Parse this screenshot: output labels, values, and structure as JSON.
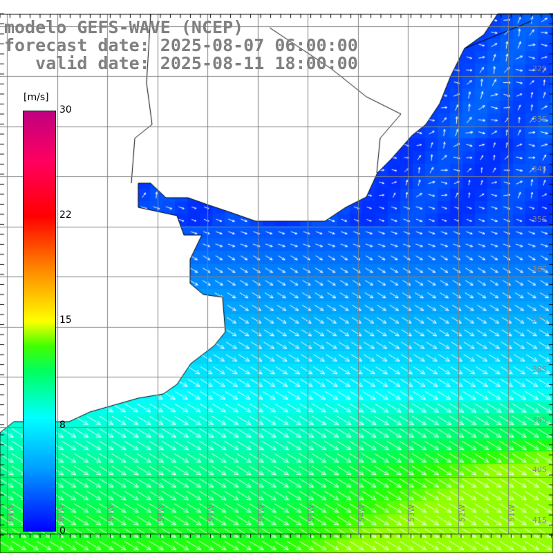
{
  "title": {
    "line1": "modelo GEFS-WAVE (NCEP)",
    "line2": "forecast date: 2025-08-07 06:00:00",
    "line3": "   valid date: 2025-08-11 18:00:00"
  },
  "colorbar": {
    "unit": "[m/s]",
    "labels": [
      "30",
      "22",
      "15",
      "8",
      "0"
    ],
    "min": 0,
    "max": 30
  },
  "lat_labels": [
    "32S",
    "33S",
    "34S",
    "35S",
    "36S",
    "37S",
    "38S",
    "39S",
    "40S",
    "41S"
  ],
  "lon_labels": [
    "61W",
    "60W",
    "59W",
    "58W",
    "57W",
    "56W",
    "55W",
    "54W",
    "53W",
    "52W",
    "51W"
  ],
  "colors": {
    "grid": "#808080",
    "land": "#ffffff",
    "arrow": "#ffffff",
    "title": "#808080"
  }
}
